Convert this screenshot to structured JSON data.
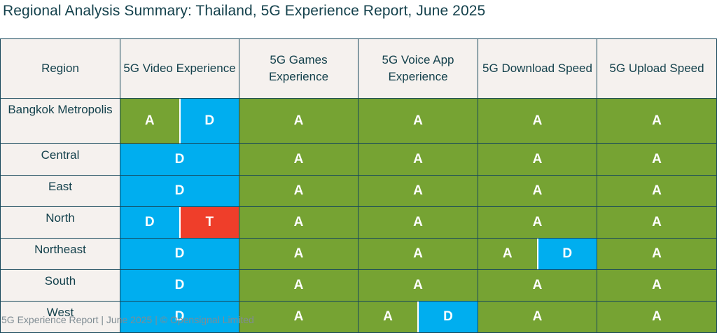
{
  "title": "Regional Analysis Summary: Thailand, 5G Experience Report, June 2025",
  "footer": "5G Experience Report | June 2025 | © Opensignal Limited",
  "colors": {
    "A": "#76a333",
    "D": "#00aeef",
    "T": "#ef3e2a",
    "header_bg": "#f5f1ee",
    "border": "#16475a"
  },
  "columns": [
    "Region",
    "5G Video Experience",
    "5G Games Experience",
    "5G Voice App Experience",
    "5G Download Speed",
    "5G Upload Speed"
  ],
  "rows": [
    {
      "region": "Bangkok Metropolis",
      "cells": [
        [
          "A",
          "D"
        ],
        [
          "A"
        ],
        [
          "A"
        ],
        [
          "A"
        ],
        [
          "A"
        ]
      ]
    },
    {
      "region": "Central",
      "cells": [
        [
          "D"
        ],
        [
          "A"
        ],
        [
          "A"
        ],
        [
          "A"
        ],
        [
          "A"
        ]
      ]
    },
    {
      "region": "East",
      "cells": [
        [
          "D"
        ],
        [
          "A"
        ],
        [
          "A"
        ],
        [
          "A"
        ],
        [
          "A"
        ]
      ]
    },
    {
      "region": "North",
      "cells": [
        [
          "D",
          "T"
        ],
        [
          "A"
        ],
        [
          "A"
        ],
        [
          "A"
        ],
        [
          "A"
        ]
      ]
    },
    {
      "region": "Northeast",
      "cells": [
        [
          "D"
        ],
        [
          "A"
        ],
        [
          "A"
        ],
        [
          "A",
          "D"
        ],
        [
          "A"
        ]
      ]
    },
    {
      "region": "South",
      "cells": [
        [
          "D"
        ],
        [
          "A"
        ],
        [
          "A"
        ],
        [
          "A"
        ],
        [
          "A"
        ]
      ]
    },
    {
      "region": "West",
      "cells": [
        [
          "D"
        ],
        [
          "A"
        ],
        [
          "A",
          "D"
        ],
        [
          "A"
        ],
        [
          "A"
        ]
      ]
    }
  ]
}
